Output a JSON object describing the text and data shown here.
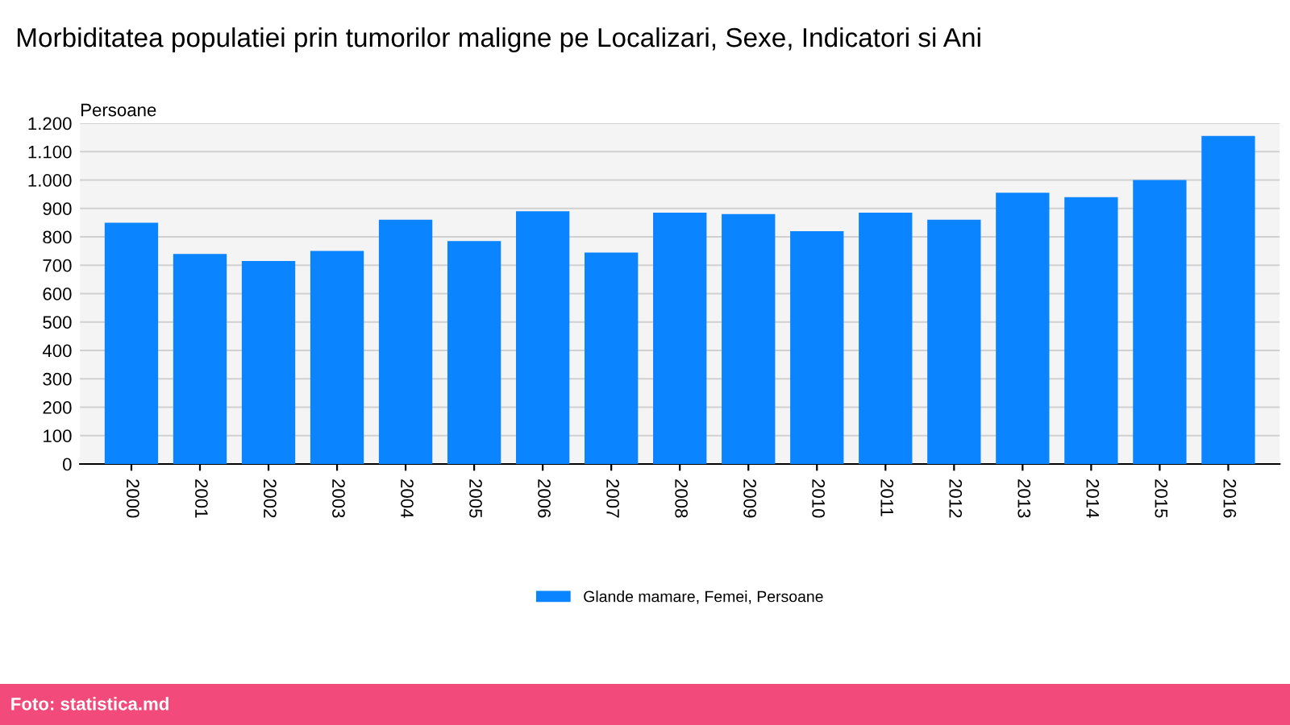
{
  "chart_data": {
    "type": "bar",
    "title": "Morbiditatea populatiei prin tumorilor maligne pe Localizari, Sexe, Indicatori si Ani",
    "ylabel": "Persoane",
    "categories": [
      "2000",
      "2001",
      "2002",
      "2003",
      "2004",
      "2005",
      "2006",
      "2007",
      "2008",
      "2009",
      "2010",
      "2011",
      "2012",
      "2013",
      "2014",
      "2015",
      "2016"
    ],
    "series": [
      {
        "name": "Glande mamare, Femei, Persoane",
        "color": "#0a84ff",
        "values": [
          850,
          740,
          715,
          750,
          860,
          785,
          890,
          745,
          885,
          880,
          820,
          885,
          860,
          955,
          940,
          1000,
          1155
        ]
      }
    ],
    "ylim": [
      0,
      1200
    ],
    "yticks": [
      0,
      100,
      200,
      300,
      400,
      500,
      600,
      700,
      800,
      900,
      {
        "value": 1000,
        "label": "1.000"
      },
      {
        "value": 1100,
        "label": "1.100"
      },
      {
        "value": 1200,
        "label": "1.200"
      }
    ],
    "grid": "y",
    "legend": "bottom",
    "annotations": [
      "Foto: statistica.md"
    ]
  }
}
